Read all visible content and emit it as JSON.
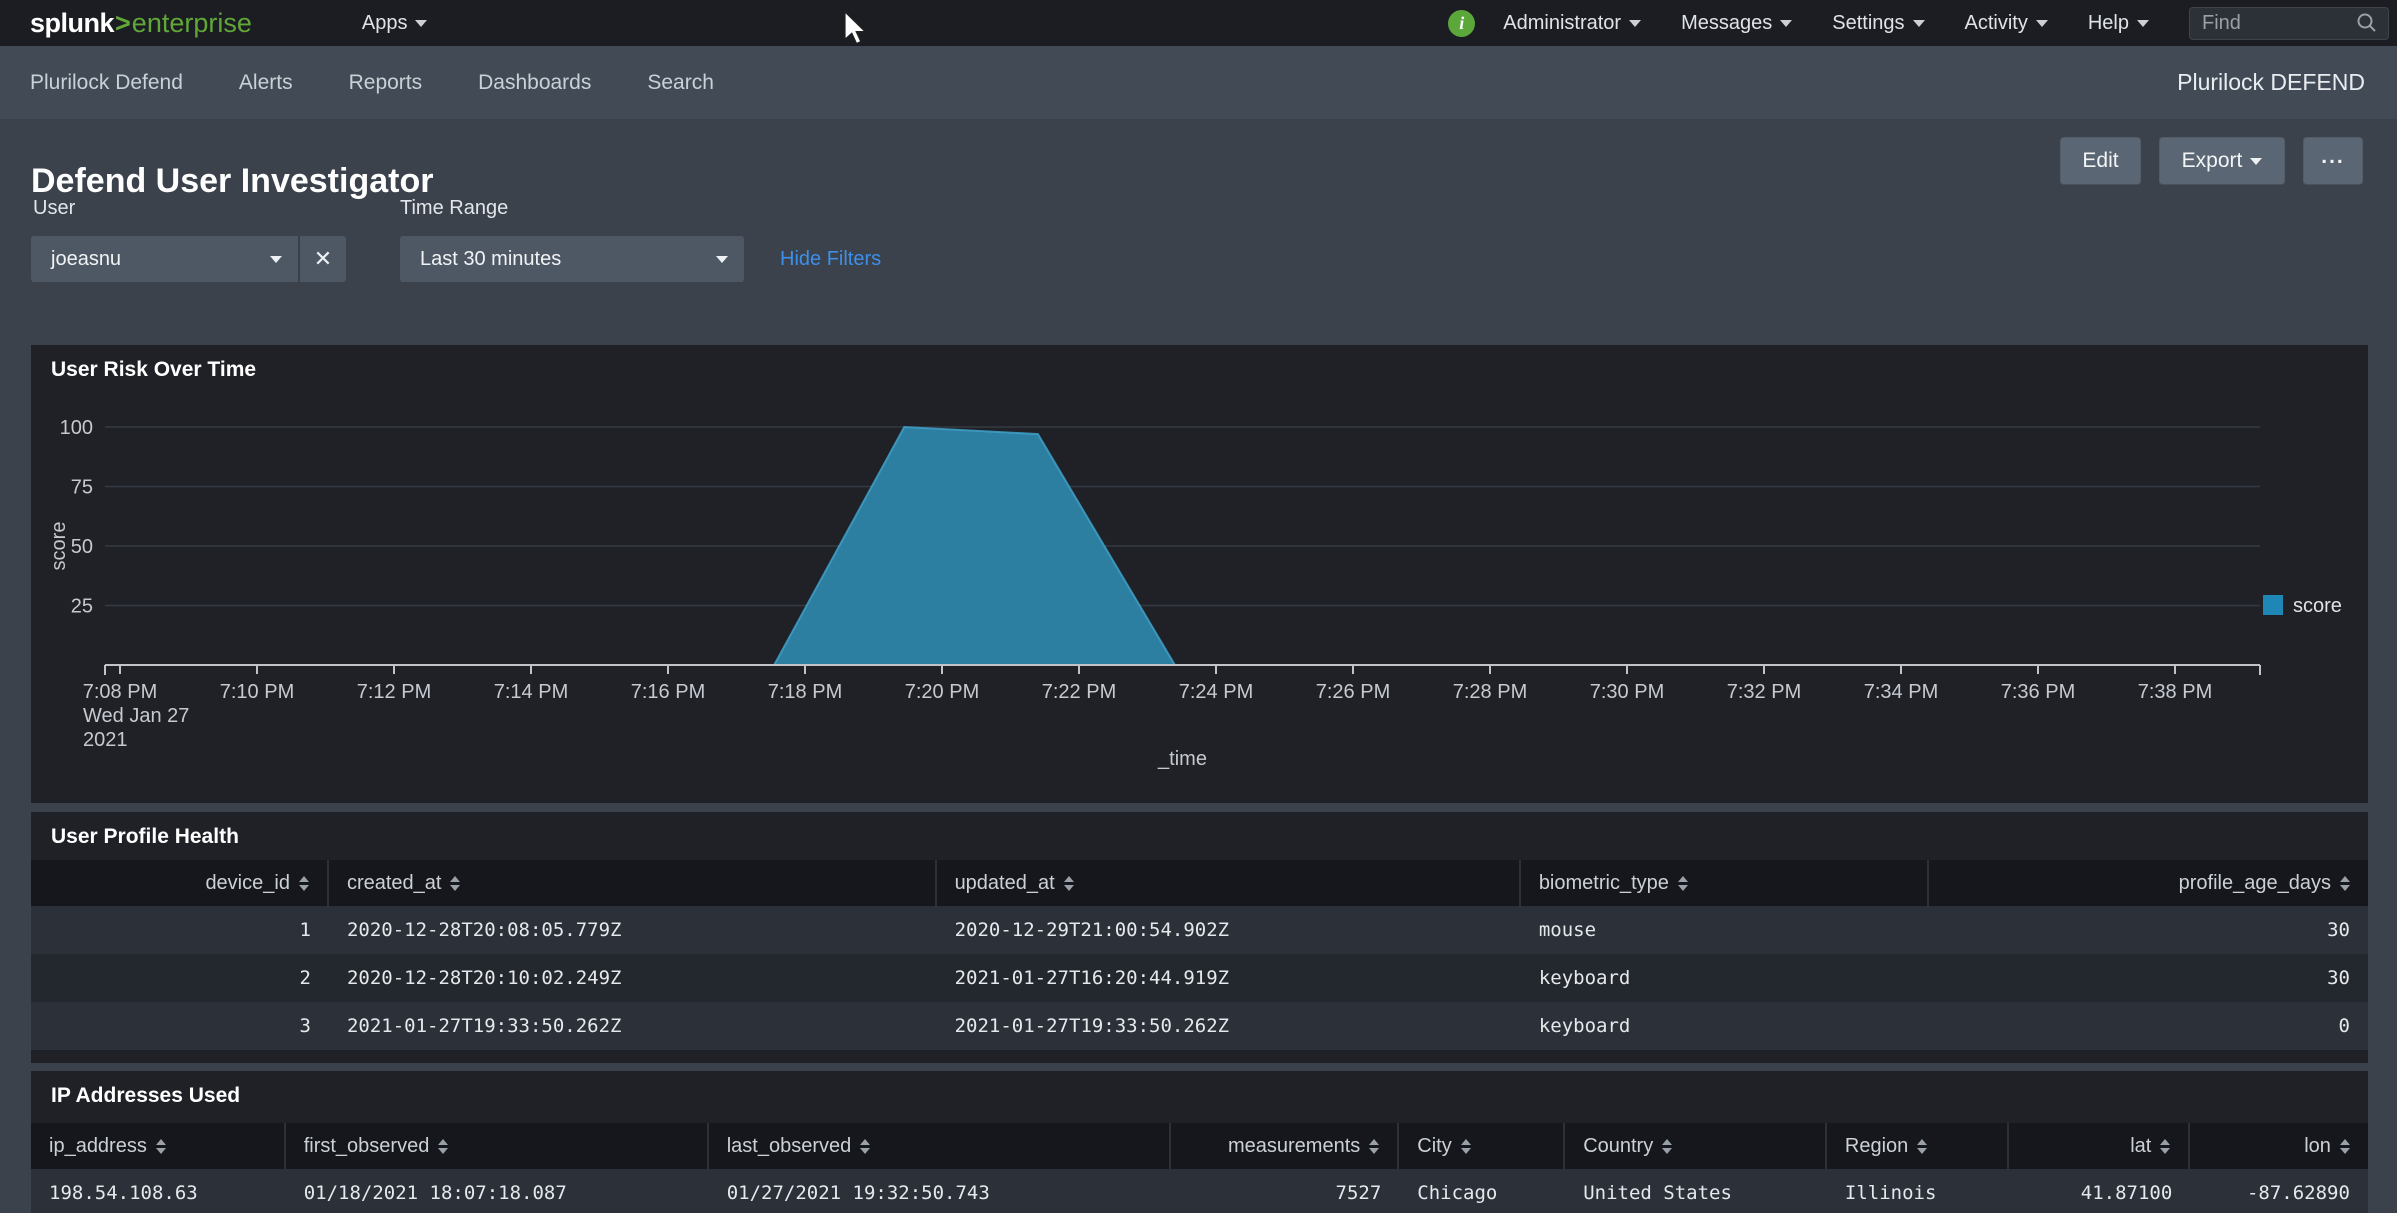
{
  "topbar": {
    "logo": {
      "name": "splunk",
      "gt": ">",
      "product": "enterprise"
    },
    "apps_label": "Apps",
    "info_glyph": "i",
    "menus": [
      {
        "label": "Administrator"
      },
      {
        "label": "Messages"
      },
      {
        "label": "Settings"
      },
      {
        "label": "Activity"
      },
      {
        "label": "Help"
      }
    ],
    "find_placeholder": "Find"
  },
  "appbar": {
    "items": [
      "Plurilock Defend",
      "Alerts",
      "Reports",
      "Dashboards",
      "Search"
    ],
    "app_title": "Plurilock DEFEND"
  },
  "header": {
    "title": "Defend User Investigator",
    "edit_label": "Edit",
    "export_label": "Export",
    "more_label": "..."
  },
  "filters": {
    "user": {
      "label": "User",
      "value": "joeasnu",
      "clear_glyph": "✕"
    },
    "time": {
      "label": "Time Range",
      "value": "Last 30 minutes"
    },
    "hide_filters": "Hide Filters"
  },
  "chart_data": {
    "type": "area",
    "title": "User Risk Over Time",
    "xlabel": "_time",
    "ylabel": "score",
    "ylim": [
      0,
      100
    ],
    "y_ticks": [
      25,
      50,
      75,
      100
    ],
    "grid": "horizontal",
    "x_tick_interval_minutes": 2,
    "x_ticks": [
      "7:08 PM",
      "7:10 PM",
      "7:12 PM",
      "7:14 PM",
      "7:16 PM",
      "7:18 PM",
      "7:20 PM",
      "7:22 PM",
      "7:24 PM",
      "7:26 PM",
      "7:28 PM",
      "7:30 PM",
      "7:32 PM",
      "7:34 PM",
      "7:36 PM",
      "7:38 PM"
    ],
    "x_start_date": [
      "Wed Jan 27",
      "2021"
    ],
    "legend": {
      "label": "score",
      "color": "#1e87b6",
      "position": "right"
    },
    "series": [
      {
        "name": "score",
        "fill": "#2d7fa2",
        "edge": "#3fa0c8",
        "points": [
          {
            "time": "7:17:33 PM",
            "minutes_from_start": 9.55,
            "score": 0
          },
          {
            "time": "7:19:25 PM",
            "minutes_from_start": 11.45,
            "score": 100
          },
          {
            "time": "7:21:24 PM",
            "minutes_from_start": 13.4,
            "score": 97
          },
          {
            "time": "7:23:22 PM",
            "minutes_from_start": 15.4,
            "score": 0
          }
        ]
      }
    ]
  },
  "tables": [
    {
      "title": "User Profile Health",
      "columns": [
        {
          "label": "device_id",
          "align": "right",
          "width": 12.75
        },
        {
          "label": "created_at",
          "align": "left",
          "width": 26.0
        },
        {
          "label": "updated_at",
          "align": "left",
          "width": 25.0
        },
        {
          "label": "biometric_type",
          "align": "left",
          "width": 17.45
        },
        {
          "label": "profile_age_days",
          "align": "right",
          "width": 18.8
        }
      ],
      "rows": [
        [
          "1",
          "2020-12-28T20:08:05.779Z",
          "2020-12-29T21:00:54.902Z",
          "mouse",
          "30"
        ],
        [
          "2",
          "2020-12-28T20:10:02.249Z",
          "2021-01-27T16:20:44.919Z",
          "keyboard",
          "30"
        ],
        [
          "3",
          "2021-01-27T19:33:50.262Z",
          "2021-01-27T19:33:50.262Z",
          "keyboard",
          "0"
        ]
      ]
    },
    {
      "title": "IP Addresses Used",
      "columns": [
        {
          "label": "ip_address",
          "align": "left",
          "width": 10.9
        },
        {
          "label": "first_observed",
          "align": "left",
          "width": 18.1
        },
        {
          "label": "last_observed",
          "align": "left",
          "width": 19.8
        },
        {
          "label": "measurements",
          "align": "right",
          "width": 9.75
        },
        {
          "label": "City",
          "align": "left",
          "width": 7.1
        },
        {
          "label": "Country",
          "align": "left",
          "width": 11.2
        },
        {
          "label": "Region",
          "align": "left",
          "width": 7.8
        },
        {
          "label": "lat",
          "align": "right",
          "width": 7.75
        },
        {
          "label": "lon",
          "align": "right",
          "width": 7.6
        }
      ],
      "rows": [
        [
          "198.54.108.63",
          "01/18/2021 18:07:18.087",
          "01/27/2021 19:32:50.743",
          "7527",
          "Chicago",
          "United States",
          "Illinois",
          "41.87100",
          "-87.62890"
        ]
      ]
    }
  ],
  "colors": {
    "splunk_green": "#61a738",
    "link_blue": "#3d8fe8",
    "series_blue": "#2d7fa2",
    "legend_blue": "#1e87b6",
    "page_bg": "#3b424c",
    "panel_bg": "#1f2127"
  }
}
